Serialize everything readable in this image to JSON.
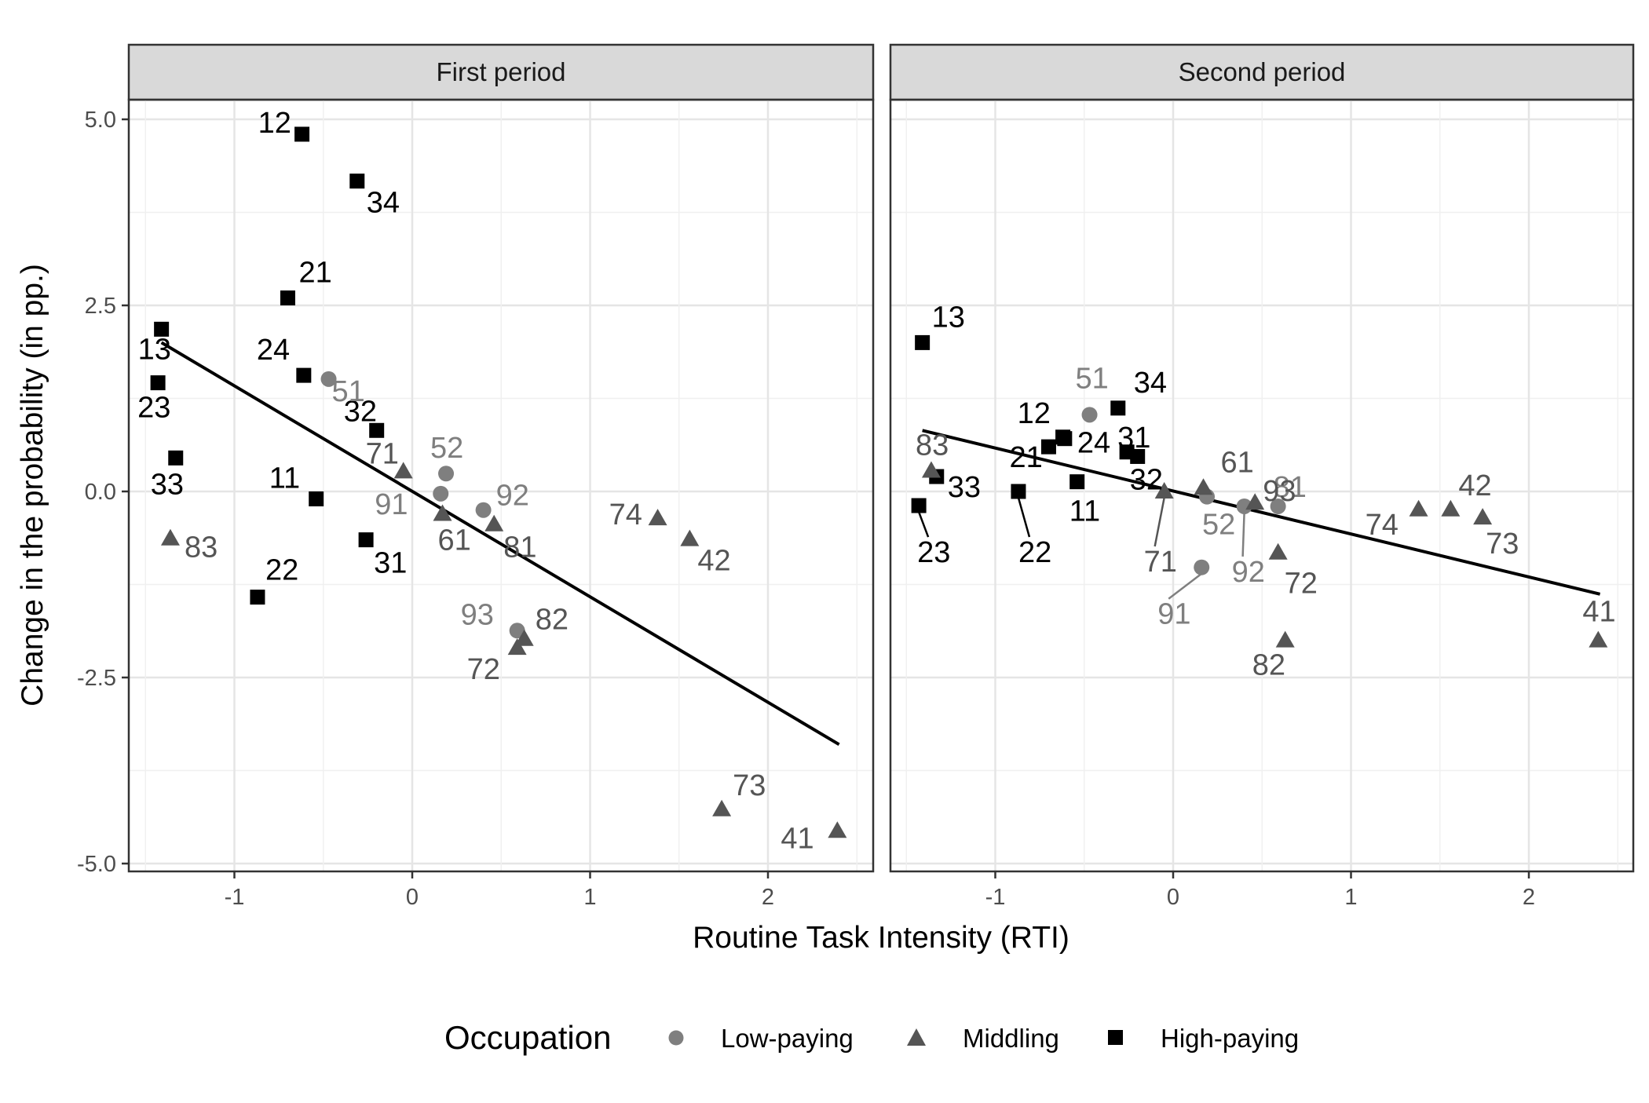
{
  "chart_data": {
    "type": "scatter",
    "facet_titles": [
      "First period",
      "Second period"
    ],
    "xlabel": "Routine Task Intensity (RTI)",
    "ylabel": "Change in the probability (in pp.)",
    "xlim": [
      -1.6,
      2.6
    ],
    "ylim": [
      -5.1,
      5.9
    ],
    "x_ticks": [
      -1,
      0,
      1,
      2
    ],
    "x_tick_labels": [
      "-1",
      "0",
      "1",
      "2"
    ],
    "y_ticks": [
      5.0,
      2.5,
      0.0,
      -2.5,
      -5.0
    ],
    "y_tick_labels": [
      "5.0",
      "2.5",
      "0.0",
      "-2.5",
      "-5.0"
    ],
    "grid": true,
    "legend": {
      "title": "Occupation",
      "position": "bottom",
      "items": [
        {
          "label": "Low-paying",
          "shape": "circle",
          "color": "#7f7f7f"
        },
        {
          "label": "Middling",
          "shape": "triangle",
          "color": "#555555"
        },
        {
          "label": "High-paying",
          "shape": "square",
          "color": "#000000"
        }
      ]
    },
    "colors": {
      "Low-paying": "#7f7f7f",
      "Middling": "#555555",
      "High-paying": "#000000",
      "fit_line": "#000000"
    },
    "panels": [
      {
        "title": "First period",
        "fit_line": {
          "x": [
            -1.41,
            2.4
          ],
          "y": [
            2.0,
            -3.4
          ]
        },
        "points": [
          {
            "label": "12",
            "x": -0.62,
            "y": 4.8,
            "group": "High-paying"
          },
          {
            "label": "34",
            "x": -0.31,
            "y": 4.17,
            "group": "High-paying"
          },
          {
            "label": "21",
            "x": -0.7,
            "y": 2.6,
            "group": "High-paying"
          },
          {
            "label": "13",
            "x": -1.41,
            "y": 2.18,
            "group": "High-paying"
          },
          {
            "label": "24",
            "x": -0.61,
            "y": 1.56,
            "group": "High-paying"
          },
          {
            "label": "23",
            "x": -1.43,
            "y": 1.46,
            "group": "High-paying"
          },
          {
            "label": "32",
            "x": -0.2,
            "y": 0.82,
            "group": "High-paying"
          },
          {
            "label": "33",
            "x": -1.33,
            "y": 0.45,
            "group": "High-paying"
          },
          {
            "label": "11",
            "x": -0.54,
            "y": -0.1,
            "group": "High-paying"
          },
          {
            "label": "31",
            "x": -0.26,
            "y": -0.65,
            "group": "High-paying"
          },
          {
            "label": "22",
            "x": -0.87,
            "y": -1.42,
            "group": "High-paying"
          },
          {
            "label": "51",
            "x": -0.47,
            "y": 1.51,
            "group": "Low-paying"
          },
          {
            "label": "52",
            "x": 0.19,
            "y": 0.24,
            "group": "Low-paying"
          },
          {
            "label": "91",
            "x": 0.16,
            "y": -0.03,
            "group": "Low-paying"
          },
          {
            "label": "92",
            "x": 0.4,
            "y": -0.25,
            "group": "Low-paying"
          },
          {
            "label": "93",
            "x": 0.59,
            "y": -1.87,
            "group": "Low-paying"
          },
          {
            "label": "71",
            "x": -0.05,
            "y": 0.27,
            "group": "Middling"
          },
          {
            "label": "61",
            "x": 0.17,
            "y": -0.3,
            "group": "Middling"
          },
          {
            "label": "81",
            "x": 0.46,
            "y": -0.44,
            "group": "Middling"
          },
          {
            "label": "74",
            "x": 1.38,
            "y": -0.36,
            "group": "Middling"
          },
          {
            "label": "42",
            "x": 1.56,
            "y": -0.64,
            "group": "Middling"
          },
          {
            "label": "83",
            "x": -1.36,
            "y": -0.63,
            "group": "Middling"
          },
          {
            "label": "82",
            "x": 0.63,
            "y": -1.98,
            "group": "Middling"
          },
          {
            "label": "72",
            "x": 0.59,
            "y": -2.1,
            "group": "Middling"
          },
          {
            "label": "73",
            "x": 1.74,
            "y": -4.27,
            "group": "Middling"
          },
          {
            "label": "41",
            "x": 2.39,
            "y": -4.56,
            "group": "Middling"
          }
        ]
      },
      {
        "title": "Second period",
        "fit_line": {
          "x": [
            -1.41,
            2.4
          ],
          "y": [
            0.82,
            -1.38
          ]
        },
        "points": [
          {
            "label": "13",
            "x": -1.41,
            "y": 2.0,
            "group": "High-paying"
          },
          {
            "label": "34",
            "x": -0.31,
            "y": 1.12,
            "group": "High-paying"
          },
          {
            "label": "12",
            "x": -0.62,
            "y": 0.73,
            "group": "High-paying"
          },
          {
            "label": "31",
            "x": -0.26,
            "y": 0.53,
            "group": "High-paying"
          },
          {
            "label": "32",
            "x": -0.2,
            "y": 0.47,
            "group": "High-paying"
          },
          {
            "label": "21",
            "x": -0.7,
            "y": 0.6,
            "group": "High-paying"
          },
          {
            "label": "24",
            "x": -0.61,
            "y": 0.71,
            "group": "High-paying"
          },
          {
            "label": "33",
            "x": -1.33,
            "y": 0.2,
            "group": "High-paying"
          },
          {
            "label": "11",
            "x": -0.54,
            "y": 0.13,
            "group": "High-paying"
          },
          {
            "label": "22",
            "x": -0.87,
            "y": 0.0,
            "group": "High-paying"
          },
          {
            "label": "23",
            "x": -1.43,
            "y": -0.19,
            "group": "High-paying"
          },
          {
            "label": "51",
            "x": -0.47,
            "y": 1.03,
            "group": "Low-paying"
          },
          {
            "label": "52",
            "x": 0.19,
            "y": -0.07,
            "group": "Low-paying"
          },
          {
            "label": "92",
            "x": 0.4,
            "y": -0.2,
            "group": "Low-paying"
          },
          {
            "label": "81",
            "x": 0.59,
            "y": -0.2,
            "group": "Low-paying"
          },
          {
            "label": "91",
            "x": 0.16,
            "y": -1.02,
            "group": "Low-paying"
          },
          {
            "label": "83",
            "x": -1.36,
            "y": 0.28,
            "group": "Middling"
          },
          {
            "label": "71",
            "x": -0.05,
            "y": 0.0,
            "group": "Middling"
          },
          {
            "label": "61",
            "x": 0.17,
            "y": 0.05,
            "group": "Middling"
          },
          {
            "label": "93",
            "x": 0.46,
            "y": -0.15,
            "group": "Middling"
          },
          {
            "label": "72",
            "x": 0.59,
            "y": -0.82,
            "group": "Middling"
          },
          {
            "label": "82",
            "x": 0.63,
            "y": -2.0,
            "group": "Middling"
          },
          {
            "label": "74",
            "x": 1.38,
            "y": -0.24,
            "group": "Middling"
          },
          {
            "label": "42",
            "x": 1.56,
            "y": -0.24,
            "group": "Middling"
          },
          {
            "label": "73",
            "x": 1.74,
            "y": -0.35,
            "group": "Middling"
          },
          {
            "label": "41",
            "x": 2.39,
            "y": -2.0,
            "group": "Middling"
          }
        ]
      }
    ]
  }
}
